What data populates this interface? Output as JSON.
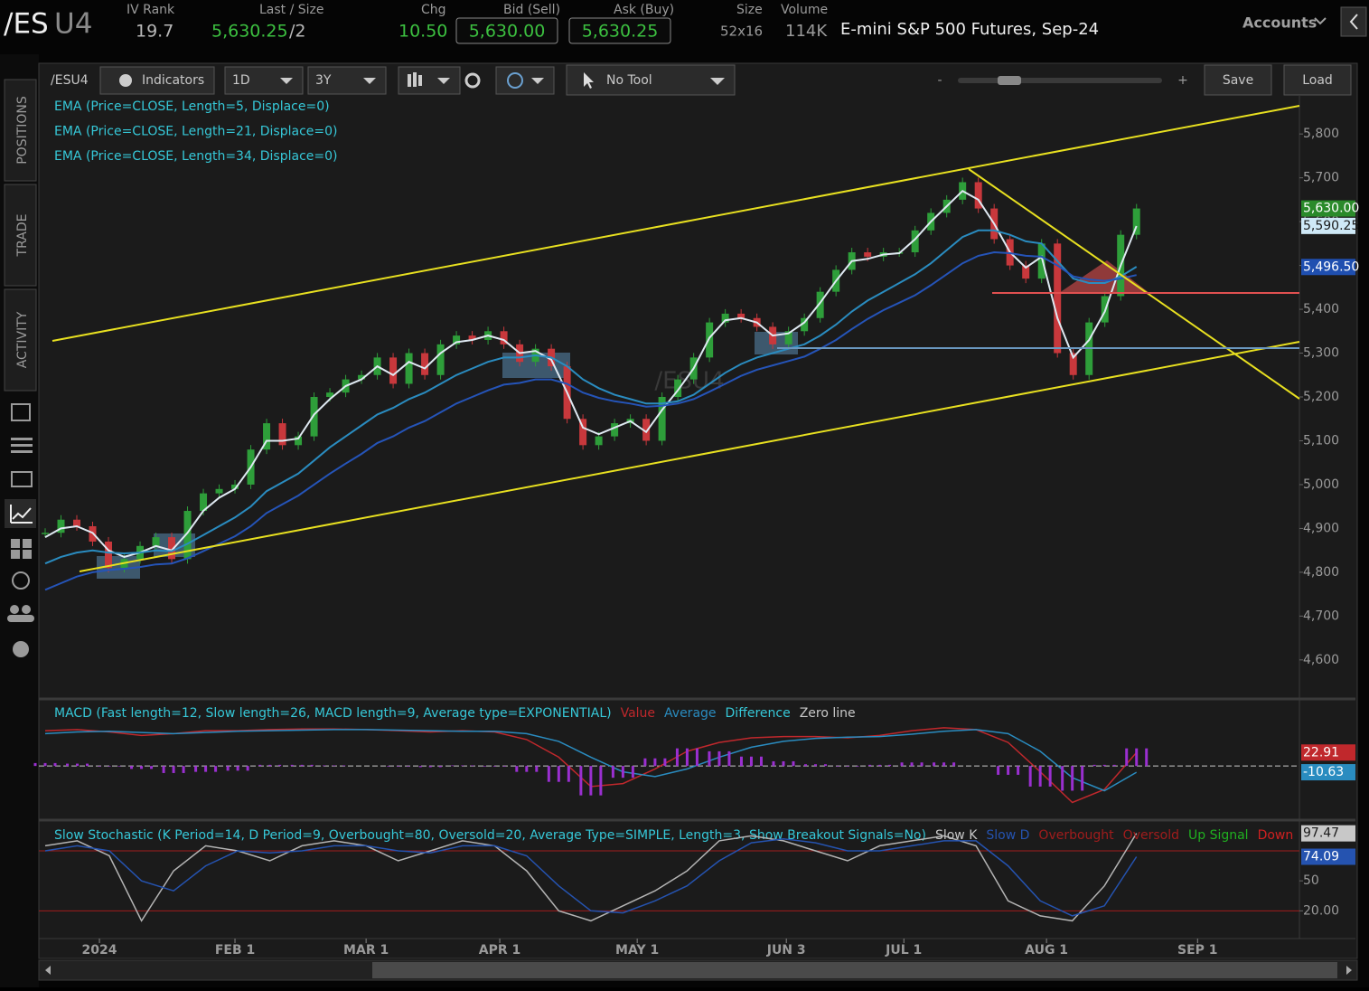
{
  "header": {
    "symbol_root": "/ES",
    "symbol_month": "U4",
    "iv_rank_label": "IV Rank",
    "iv_rank": "19.7",
    "last_size_label": "Last / Size",
    "last": "5,630.25",
    "size": "/2",
    "chg_label": "Chg",
    "chg": "10.50",
    "bid_label": "Bid (Sell)",
    "bid": "5,630.00",
    "ask_label": "Ask (Buy)",
    "ask": "5,630.25",
    "size_label": "Size",
    "size_value": "52x16",
    "volume_label": "Volume",
    "volume": "114K",
    "description": "E-mini S&P 500 Futures, Sep-24",
    "accounts": "Accounts"
  },
  "toolbar": {
    "symbol": "/ESU4",
    "indicators": "Indicators",
    "aggregation": "1D",
    "period": "3Y",
    "tool": "No Tool",
    "zoom_out": "-",
    "zoom_in": "+",
    "save": "Save",
    "load": "Load"
  },
  "sidebar": {
    "tabs": [
      "POSITIONS",
      "TRADE",
      "ACTIVITY"
    ]
  },
  "chart_data": [
    {
      "type": "candlestick",
      "watermark": "/ESU4",
      "up_color": "#2e9e3a",
      "down_color": "#c8383c",
      "legend_color": "#36c8d8",
      "values": [
        4890,
        4920,
        4905,
        4870,
        4810,
        4830,
        4860,
        4880,
        4830,
        4940,
        4980,
        4990,
        5000,
        5080,
        5140,
        5090,
        5110,
        5200,
        5210,
        5240,
        5250,
        5290,
        5230,
        5300,
        5250,
        5320,
        5340,
        5330,
        5350,
        5320,
        5280,
        5310,
        5270,
        5150,
        5090,
        5110,
        5140,
        5150,
        5100,
        5200,
        5240,
        5290,
        5370,
        5390,
        5380,
        5360,
        5320,
        5350,
        5380,
        5440,
        5490,
        5530,
        5520,
        5530,
        5530,
        5580,
        5620,
        5650,
        5690,
        5630,
        5560,
        5500,
        5470,
        5550,
        5300,
        5250,
        5370,
        5430,
        5570,
        5630
      ],
      "series": [
        {
          "name": "EMA (Price=CLOSE, Length=5, Displace=0)",
          "color": "#dfe9f2",
          "values": [
            4880,
            4900,
            4905,
            4890,
            4850,
            4835,
            4845,
            4860,
            4850,
            4890,
            4940,
            4970,
            4990,
            5040,
            5100,
            5100,
            5105,
            5160,
            5195,
            5225,
            5240,
            5270,
            5250,
            5280,
            5265,
            5300,
            5325,
            5330,
            5340,
            5330,
            5300,
            5305,
            5285,
            5210,
            5130,
            5115,
            5130,
            5145,
            5120,
            5170,
            5215,
            5265,
            5335,
            5375,
            5380,
            5370,
            5340,
            5345,
            5370,
            5415,
            5465,
            5510,
            5515,
            5525,
            5528,
            5560,
            5600,
            5635,
            5670,
            5650,
            5595,
            5530,
            5495,
            5520,
            5380,
            5290,
            5330,
            5395,
            5500,
            5590
          ]
        },
        {
          "name": "EMA (Price=CLOSE, Length=21, Displace=0)",
          "color": "#2a8cc0",
          "values": [
            4820,
            4835,
            4845,
            4850,
            4845,
            4843,
            4845,
            4850,
            4848,
            4865,
            4885,
            4905,
            4925,
            4950,
            4985,
            5005,
            5025,
            5055,
            5085,
            5110,
            5135,
            5160,
            5175,
            5195,
            5210,
            5230,
            5250,
            5265,
            5280,
            5290,
            5290,
            5295,
            5290,
            5270,
            5240,
            5220,
            5205,
            5195,
            5185,
            5185,
            5190,
            5205,
            5230,
            5255,
            5275,
            5290,
            5300,
            5310,
            5320,
            5340,
            5365,
            5395,
            5420,
            5440,
            5460,
            5480,
            5505,
            5535,
            5565,
            5580,
            5580,
            5570,
            5555,
            5550,
            5510,
            5470,
            5460,
            5460,
            5475,
            5497
          ]
        },
        {
          "name": "EMA (Price=CLOSE, Length=34, Displace=0)",
          "color": "#2554b8",
          "values": [
            4760,
            4775,
            4790,
            4800,
            4805,
            4808,
            4812,
            4818,
            4820,
            4832,
            4848,
            4865,
            4882,
            4905,
            4935,
            4955,
            4975,
            5000,
            5025,
            5048,
            5070,
            5095,
            5110,
            5130,
            5145,
            5165,
            5185,
            5200,
            5215,
            5228,
            5232,
            5240,
            5240,
            5230,
            5210,
            5198,
            5190,
            5185,
            5178,
            5180,
            5185,
            5195,
            5212,
            5230,
            5248,
            5262,
            5272,
            5282,
            5292,
            5310,
            5330,
            5355,
            5378,
            5398,
            5415,
            5432,
            5455,
            5480,
            5505,
            5522,
            5530,
            5528,
            5522,
            5520,
            5500,
            5475,
            5468,
            5465,
            5470,
            5478
          ]
        }
      ],
      "xlim": [
        -0.4,
        79.3
      ],
      "xticks": [
        {
          "value": 3.43,
          "label": "2024"
        },
        {
          "value": 12,
          "label": "FEB 1"
        },
        {
          "value": 20.29,
          "label": "MAR 1"
        },
        {
          "value": 28.74,
          "label": "APR 1"
        },
        {
          "value": 37.43,
          "label": "MAY 1"
        },
        {
          "value": 46.86,
          "label": "JUN 3"
        },
        {
          "value": 54.29,
          "label": "JUL 1"
        },
        {
          "value": 63.31,
          "label": "AUG 1"
        },
        {
          "value": 72.86,
          "label": "SEP 1"
        }
      ],
      "ylim": [
        4513,
        5887
      ],
      "yticks": [
        {
          "value": 4600,
          "label": "4,600"
        },
        {
          "value": 4700,
          "label": "4,700"
        },
        {
          "value": 4800,
          "label": "4,800"
        },
        {
          "value": 4900,
          "label": "4,900"
        },
        {
          "value": 5000,
          "label": "5,000"
        },
        {
          "value": 5100,
          "label": "5,100"
        },
        {
          "value": 5200,
          "label": "5,200"
        },
        {
          "value": 5300,
          "label": "5,300"
        },
        {
          "value": 5400,
          "label": "5,400"
        },
        {
          "value": 5500,
          "label": "5,500"
        },
        {
          "value": 5600,
          "label": "5,600"
        },
        {
          "value": 5700,
          "label": "5,700"
        },
        {
          "value": 5800,
          "label": "5,800"
        }
      ],
      "price_labels": [
        {
          "value": 5630,
          "label": "5,630.00",
          "color": "#2a8a2a",
          "text_color": "#ffffff"
        },
        {
          "value": 5590.25,
          "label": "5,590.25",
          "color": "#cfe9f7",
          "text_color": "#1a1a1a"
        },
        {
          "value": 5496.5,
          "label": "5,496.50",
          "color": "#1f4fb0",
          "text_color": "#ffffff"
        }
      ]
    },
    {
      "type": "line",
      "title": "MACD (Fast length=12, Slow length=26, MACD length=9, Average type=EXPONENTIAL)",
      "title_color": "#36c8d8",
      "zero_line": "Zero line",
      "zero_color": "#c8c8c8",
      "series": [
        {
          "name": "Value",
          "color": "#c0282c",
          "label_color": "#c0282c",
          "values": [
            60,
            62,
            58,
            52,
            55,
            60,
            60,
            62,
            63,
            63,
            62,
            60,
            58,
            60,
            58,
            45,
            15,
            -35,
            -30,
            -5,
            25,
            40,
            48,
            50,
            50,
            48,
            52,
            60,
            65,
            62,
            40,
            -10,
            -62,
            -40,
            22.91
          ]
        },
        {
          "name": "Average",
          "color": "#2a8cc0",
          "label_color": "#2a8cc0",
          "values": [
            55,
            58,
            59,
            57,
            55,
            57,
            59,
            60,
            61,
            62,
            62,
            61,
            60,
            59,
            59,
            55,
            42,
            15,
            -10,
            -18,
            -5,
            15,
            32,
            42,
            47,
            49,
            50,
            54,
            59,
            62,
            55,
            25,
            -20,
            -42,
            -10.63
          ]
        },
        {
          "name": "Difference",
          "style": "bar",
          "color": "#9a2fd0",
          "label_color": "#36c8d8",
          "values": [
            5,
            4,
            -1,
            -5,
            -12,
            -10,
            -8,
            2,
            2,
            1,
            0,
            -1,
            -2,
            1,
            -1,
            -10,
            -27,
            -50,
            -20,
            13,
            30,
            25,
            16,
            8,
            3,
            -1,
            2,
            6,
            6,
            0,
            -15,
            -35,
            -42,
            2,
            30
          ]
        }
      ],
      "ylim": [
        -89,
        111
      ],
      "price_labels": [
        {
          "value": 22.91,
          "label": "22.91",
          "color": "#c0282c",
          "text_color": "#ffffff"
        },
        {
          "value": -10.63,
          "label": "-10.63",
          "color": "#2a8cc0",
          "text_color": "#ffffff"
        }
      ]
    },
    {
      "type": "line",
      "title": "Slow Stochastic (K Period=14, D Period=9, Overbought=80, Oversold=20, Average Type=SIMPLE, Length=3, Show Breakout Signals=No)",
      "title_color": "#36c8d8",
      "series": [
        {
          "name": "Slow K",
          "color": "#b4b4b4",
          "label_color": "#c8c8c8",
          "values": [
            85,
            90,
            75,
            10,
            60,
            85,
            80,
            70,
            85,
            90,
            85,
            70,
            80,
            90,
            85,
            60,
            20,
            10,
            25,
            40,
            60,
            90,
            95,
            90,
            80,
            70,
            85,
            90,
            95,
            85,
            30,
            15,
            10,
            45,
            97.47
          ]
        },
        {
          "name": "Slow D",
          "color": "#2553b0",
          "label_color": "#2553b0",
          "values": [
            80,
            85,
            80,
            50,
            40,
            65,
            80,
            78,
            80,
            85,
            85,
            80,
            78,
            85,
            85,
            75,
            45,
            20,
            18,
            30,
            45,
            70,
            88,
            92,
            88,
            80,
            80,
            85,
            90,
            90,
            65,
            30,
            15,
            25,
            74.09
          ]
        }
      ],
      "levels": [
        {
          "name": "Overbought",
          "value": 80,
          "color": "#a01c1c"
        },
        {
          "name": "Oversold",
          "value": 20,
          "color": "#a01c1c"
        }
      ],
      "signals": [
        {
          "name": "Up Signal",
          "color": "#20b020"
        },
        {
          "name": "Down",
          "color": "#d02020"
        }
      ],
      "ylim": [
        -5,
        108
      ],
      "yticks": [
        50,
        {
          "value": 20,
          "label": "20.00"
        }
      ],
      "price_labels": [
        {
          "value": 97.47,
          "label": "97.47",
          "color": "#c8c8c8",
          "text_color": "#1a1a1a"
        },
        {
          "value": 74.09,
          "label": "74.09",
          "color": "#2553b0",
          "text_color": "#ffffff"
        }
      ]
    }
  ]
}
